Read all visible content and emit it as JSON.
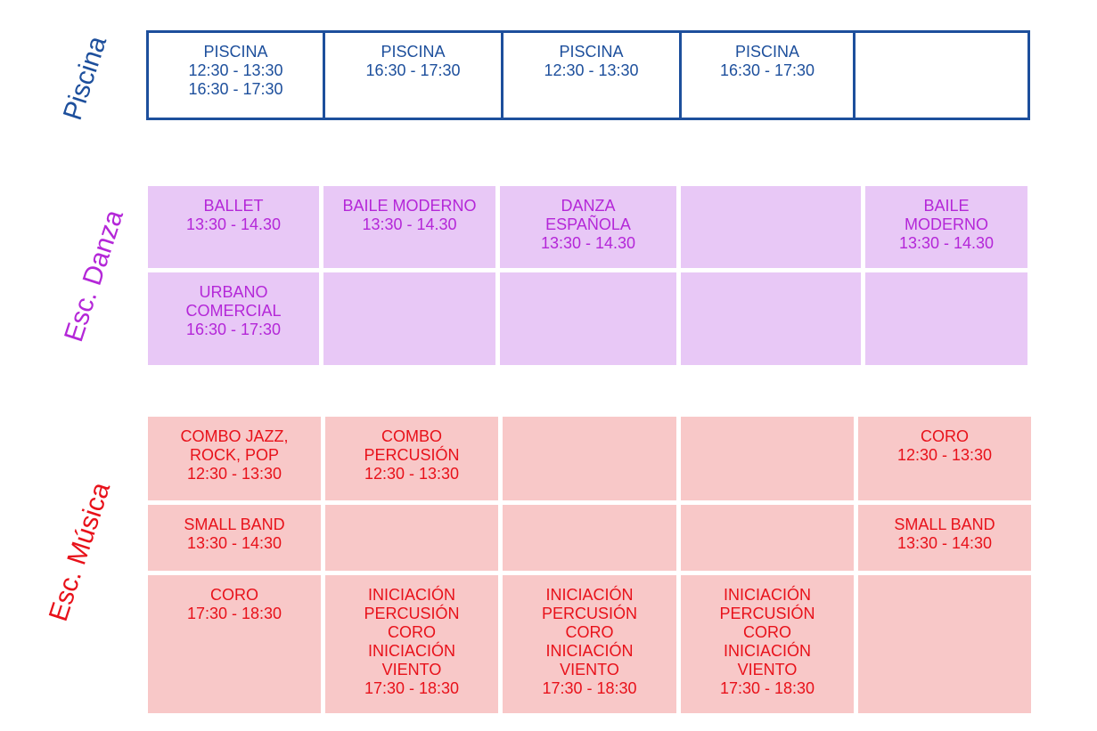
{
  "colors": {
    "piscina": "#1d4f9c",
    "danza_text": "#b427d8",
    "danza_bg": "#e8c8f6",
    "musica_text": "#e8111a",
    "musica_bg": "#f8c8c8"
  },
  "sections": {
    "piscina": {
      "label": "Piscina",
      "cells": [
        [
          "PISCINA",
          "12:30 - 13:30",
          "16:30 - 17:30"
        ],
        [
          "PISCINA",
          "16:30 - 17:30"
        ],
        [
          "PISCINA",
          "12:30 - 13:30"
        ],
        [
          "PISCINA",
          "16:30 - 17:30"
        ],
        []
      ]
    },
    "danza": {
      "label": "Esc. Danza",
      "rows": [
        [
          [
            "BALLET",
            "13:30 - 14.30"
          ],
          [
            "BAILE MODERNO",
            "13:30 - 14.30"
          ],
          [
            "DANZA",
            "ESPAÑOLA",
            "13:30 - 14.30"
          ],
          [],
          [
            "BAILE",
            "MODERNO",
            "13:30 - 14.30"
          ]
        ],
        [
          [
            "URBANO",
            "COMERCIAL",
            "16:30 - 17:30"
          ],
          [],
          [],
          [],
          []
        ]
      ]
    },
    "musica": {
      "label": "Esc. Música",
      "rows": [
        [
          [
            "COMBO JAZZ,",
            "ROCK, POP",
            "12:30 - 13:30"
          ],
          [
            "COMBO",
            "PERCUSIÓN",
            "12:30 - 13:30"
          ],
          [],
          [],
          [
            "CORO",
            "12:30 - 13:30"
          ]
        ],
        [
          [
            "SMALL BAND",
            "13:30 - 14:30"
          ],
          [],
          [],
          [],
          [
            "SMALL BAND",
            "13:30 - 14:30"
          ]
        ],
        [
          [
            "CORO",
            "17:30 - 18:30"
          ],
          [
            "INICIACIÓN",
            "PERCUSIÓN",
            "CORO",
            "INICIACIÓN",
            "VIENTO",
            "17:30 - 18:30"
          ],
          [
            "INICIACIÓN",
            "PERCUSIÓN",
            "CORO",
            "INICIACIÓN",
            "VIENTO",
            "17:30 - 18:30"
          ],
          [
            "INICIACIÓN",
            "PERCUSIÓN",
            "CORO",
            "INICIACIÓN",
            "VIENTO",
            "17:30 - 18:30"
          ],
          []
        ]
      ]
    }
  }
}
